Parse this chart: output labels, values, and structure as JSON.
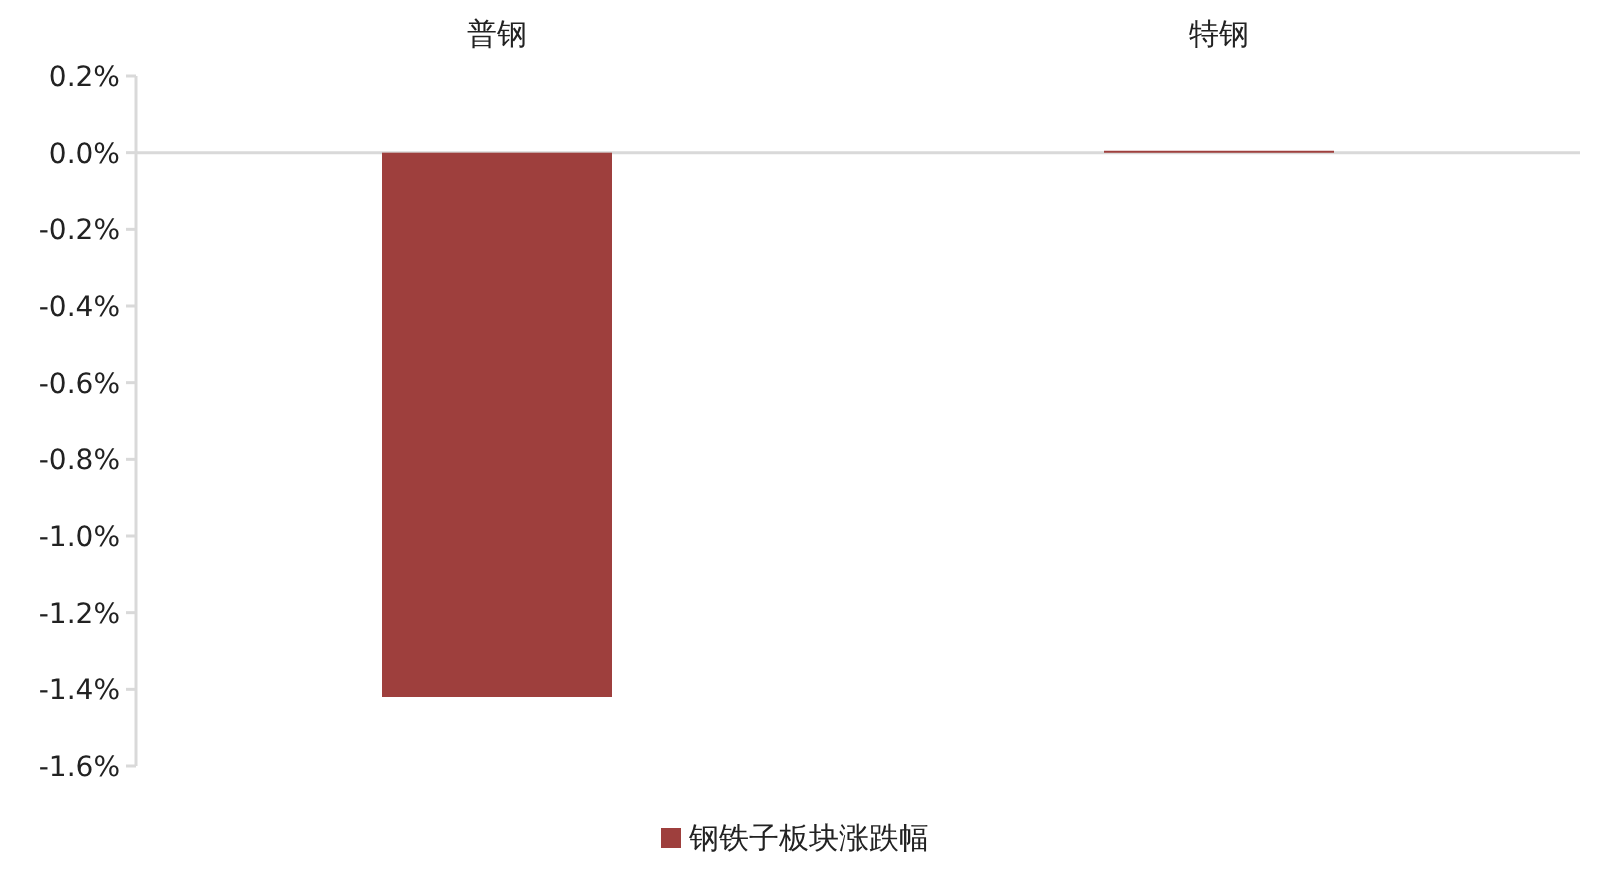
{
  "chart_data": {
    "type": "bar",
    "categories": [
      "普钢",
      "特钢"
    ],
    "series": [
      {
        "name": "钢铁子板块涨跌幅",
        "color": "#9e3f3d",
        "values": [
          -1.42,
          0.005
        ]
      }
    ],
    "ylim": [
      -1.6,
      0.2
    ],
    "yticks": [
      {
        "value": 0.2,
        "label": "0.2%"
      },
      {
        "value": 0,
        "label": "0.0%"
      },
      {
        "value": -0.2,
        "label": "-0.2%"
      },
      {
        "value": -0.4,
        "label": "-0.4%"
      },
      {
        "value": -0.6,
        "label": "-0.6%"
      },
      {
        "value": -0.8,
        "label": "-0.8%"
      },
      {
        "value": -1.0,
        "label": "-1.0%"
      },
      {
        "value": -1.2,
        "label": "-1.2%"
      },
      {
        "value": -1.4,
        "label": "-1.4%"
      },
      {
        "value": -1.6,
        "label": "-1.6%"
      }
    ],
    "legend": "bottom"
  }
}
